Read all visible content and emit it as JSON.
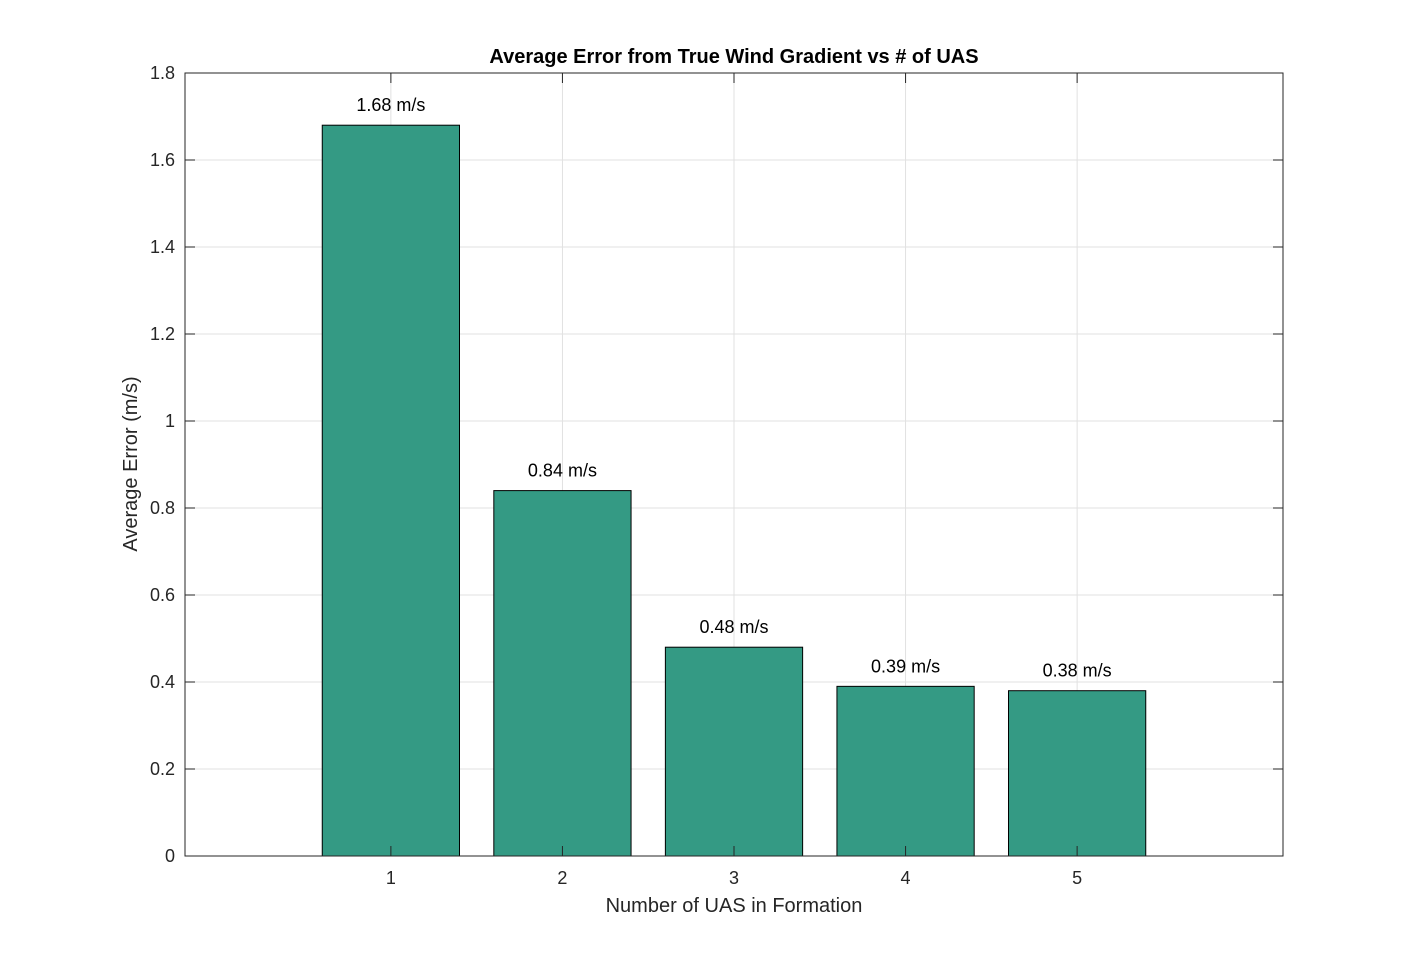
{
  "chart_data": {
    "type": "bar",
    "title": "Average Error from True Wind Gradient vs # of UAS",
    "xlabel": "Number of UAS in Formation",
    "ylabel": "Average Error (m/s)",
    "categories": [
      "1",
      "2",
      "3",
      "4",
      "5"
    ],
    "values": [
      1.68,
      0.84,
      0.48,
      0.39,
      0.38
    ],
    "data_labels": [
      "1.68 m/s",
      "0.84 m/s",
      "0.48 m/s",
      "0.39 m/s",
      "0.38 m/s"
    ],
    "ylim": [
      0,
      1.8
    ],
    "xlim": [
      -0.2,
      6.2
    ],
    "yticks": [
      0,
      0.2,
      0.4,
      0.6,
      0.8,
      1,
      1.2,
      1.4,
      1.6,
      1.8
    ],
    "ytick_labels": [
      "0",
      "0.2",
      "0.4",
      "0.6",
      "0.8",
      "1",
      "1.2",
      "1.4",
      "1.6",
      "1.8"
    ],
    "grid": true,
    "bar_color": "#349a84",
    "bar_edge_color": "#000000"
  }
}
